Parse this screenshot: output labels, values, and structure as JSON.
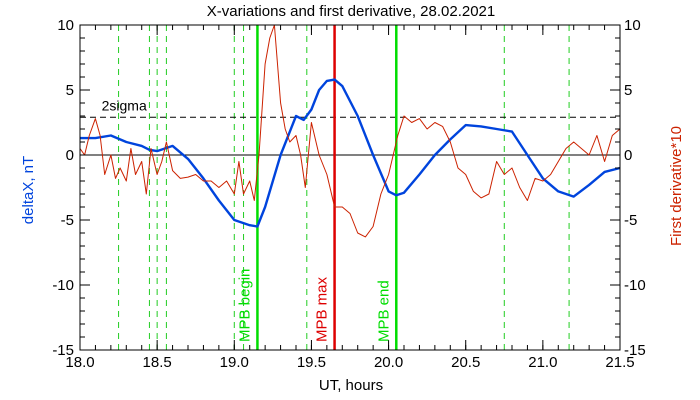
{
  "chart_data": {
    "type": "line",
    "title": "X-variations and first derivative, 28.02.2021",
    "xlabel": "UT, hours",
    "ylabel_left": "deltaX, nT",
    "ylabel_right": "First derivative*10",
    "xlim": [
      18.0,
      21.5
    ],
    "ylim": [
      -15,
      10
    ],
    "xticks": [
      "18.0",
      "18.5",
      "19.0",
      "19.5",
      "20.0",
      "20.5",
      "21.0",
      "21.5"
    ],
    "yticks": [
      "-15",
      "-10",
      "-5",
      "0",
      "5",
      "10"
    ],
    "sigma": {
      "label": "2sigma",
      "value": 2.9
    },
    "green_dashed_lines": [
      18.25,
      18.45,
      18.5,
      18.56,
      19.0,
      19.06,
      19.47,
      20.75,
      21.17
    ],
    "markers": [
      {
        "label": "MPB begin",
        "x": 19.15,
        "color": "#00dd00"
      },
      {
        "label": "MPB max",
        "x": 19.65,
        "color": "#dd0000"
      },
      {
        "label": "MPB end",
        "x": 20.05,
        "color": "#00dd00"
      }
    ],
    "series": [
      {
        "name": "deltaX, nT",
        "color": "#0044dd",
        "x": [
          18.0,
          18.1,
          18.2,
          18.3,
          18.4,
          18.45,
          18.5,
          18.55,
          18.6,
          18.7,
          18.8,
          18.9,
          19.0,
          19.1,
          19.15,
          19.2,
          19.3,
          19.4,
          19.45,
          19.5,
          19.55,
          19.6,
          19.65,
          19.7,
          19.8,
          19.9,
          20.0,
          20.05,
          20.1,
          20.2,
          20.3,
          20.4,
          20.5,
          20.6,
          20.7,
          20.8,
          20.9,
          21.0,
          21.1,
          21.2,
          21.3,
          21.4,
          21.5
        ],
        "y": [
          1.3,
          1.3,
          1.5,
          1.0,
          0.7,
          0.4,
          0.3,
          0.5,
          0.7,
          -0.3,
          -1.8,
          -3.5,
          -5.0,
          -5.4,
          -5.5,
          -4.0,
          0.0,
          3.0,
          2.7,
          3.5,
          5.0,
          5.7,
          5.8,
          5.3,
          3.0,
          0.0,
          -2.8,
          -3.1,
          -2.9,
          -1.5,
          0.0,
          1.2,
          2.3,
          2.2,
          2.0,
          1.8,
          0.0,
          -1.8,
          -2.8,
          -3.2,
          -2.3,
          -1.3,
          -1.0
        ]
      },
      {
        "name": "First derivative*10",
        "color": "#cc2200",
        "x": [
          18.0,
          18.03,
          18.06,
          18.1,
          18.13,
          18.16,
          18.2,
          18.23,
          18.26,
          18.3,
          18.33,
          18.36,
          18.4,
          18.43,
          18.46,
          18.5,
          18.53,
          18.56,
          18.6,
          18.65,
          18.7,
          18.75,
          18.8,
          18.85,
          18.9,
          18.95,
          19.0,
          19.03,
          19.06,
          19.1,
          19.13,
          19.16,
          19.2,
          19.23,
          19.26,
          19.3,
          19.33,
          19.36,
          19.4,
          19.43,
          19.46,
          19.5,
          19.55,
          19.6,
          19.65,
          19.7,
          19.75,
          19.8,
          19.85,
          19.9,
          19.95,
          20.0,
          20.03,
          20.06,
          20.1,
          20.15,
          20.2,
          20.25,
          20.3,
          20.35,
          20.4,
          20.45,
          20.5,
          20.55,
          20.6,
          20.65,
          20.7,
          20.75,
          20.8,
          20.85,
          20.9,
          20.95,
          21.0,
          21.05,
          21.1,
          21.15,
          21.2,
          21.25,
          21.3,
          21.35,
          21.4,
          21.45,
          21.5
        ],
        "y": [
          0.5,
          0.0,
          1.5,
          2.8,
          1.5,
          -1.5,
          0.0,
          -1.8,
          -1.0,
          -2.0,
          0.5,
          -1.5,
          -0.5,
          -3.0,
          0.5,
          -1.5,
          -0.5,
          1.0,
          -1.2,
          -1.8,
          -1.7,
          -1.5,
          -2.0,
          -2.0,
          -2.5,
          -2.0,
          -3.0,
          -0.5,
          -3.0,
          -2.0,
          -3.5,
          0.0,
          7.0,
          9.0,
          10.0,
          4.0,
          2.0,
          1.0,
          1.5,
          0.0,
          -2.5,
          2.5,
          0.0,
          -1.5,
          -4.0,
          -4.0,
          -4.5,
          -6.0,
          -6.3,
          -5.5,
          -3.0,
          -1.5,
          0.0,
          1.5,
          3.0,
          2.5,
          2.8,
          2.0,
          2.5,
          2.2,
          1.0,
          -1.0,
          -1.5,
          -2.8,
          -3.3,
          -3.0,
          -0.5,
          -1.5,
          -1.0,
          -2.5,
          -3.5,
          -1.8,
          -2.0,
          -1.5,
          -0.5,
          0.5,
          1.0,
          0.5,
          0.0,
          1.5,
          -0.5,
          1.5,
          2.0
        ]
      }
    ],
    "left_axis_color": "#0044dd",
    "right_axis_color": "#cc2200",
    "grid": false
  }
}
